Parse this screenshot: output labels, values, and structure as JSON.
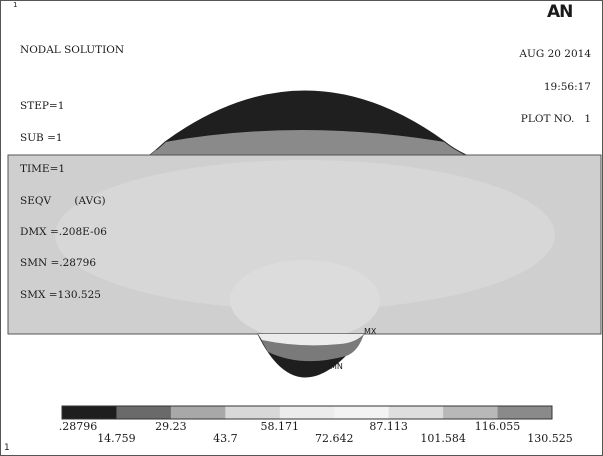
{
  "header": {
    "title": "NODAL SOLUTION",
    "lines": [
      "STEP=1",
      "SUB =1",
      "TIME=1",
      "SEQV       (AVG)",
      "DMX =.208E-06",
      "SMN =.28796",
      "SMX =130.525"
    ],
    "logo": "AN",
    "date": "AUG 20 2014",
    "time": "19:56:17",
    "plot_no": "PLOT NO.   1"
  },
  "markers": {
    "max_tag": "MX",
    "min_tag": "MN",
    "corner_digit": "1",
    "top_corner_digit": "1"
  },
  "legend": {
    "colors": [
      "#1e1e1e",
      "#6a6a6a",
      "#a8a8a8",
      "#d8d8d8",
      "#ececec",
      "#f3f3f3",
      "#dedede",
      "#b8b8b8",
      "#8a8a8a"
    ],
    "top_labels": [
      ".28796",
      "29.23",
      "58.171",
      "87.113",
      "116.055"
    ],
    "bottom_labels": [
      "14.759",
      "43.7",
      "72.642",
      "101.584",
      "130.525"
    ]
  },
  "contours": {
    "dome_top": "#1f1f1f",
    "dome_mid": "#858585",
    "plate": "#cfcfcf",
    "plate_light": "#d9d9d9",
    "root_top": "#ececec",
    "root_mid": "#7a7a7a",
    "root_bottom": "#1e1e1e"
  }
}
